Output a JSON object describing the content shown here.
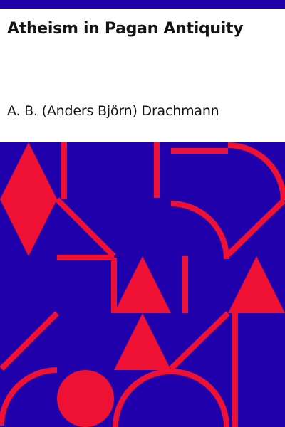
{
  "cover": {
    "title": "Atheism in Pagan Antiquity",
    "author": "A. B. (Anders Björn) Drachmann"
  },
  "colors": {
    "band": "#2000aa",
    "shapes": "#ee1133",
    "text": "#141414",
    "background": "#ffffff"
  }
}
